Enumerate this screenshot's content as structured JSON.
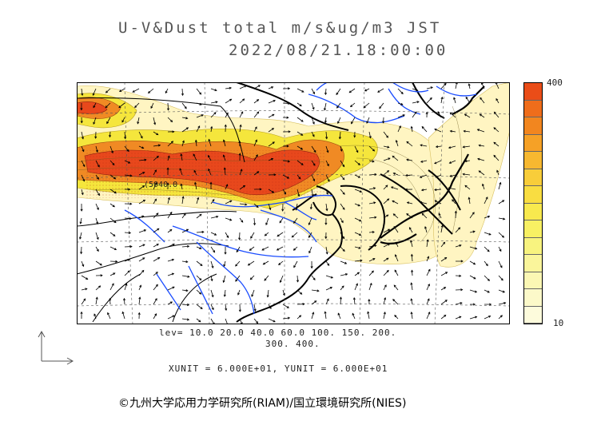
{
  "title_line1": "U-V&Dust total m/s&ug/m3 JST",
  "title_line2": "2022/08/21.18:00:00",
  "map": {
    "contour_label": "(5040.0",
    "arrow_field": "wind-vector-field",
    "colors": {
      "coast": "#000000",
      "rivers": "#1a4cff",
      "grid": "#555555",
      "low": "#fff5c2",
      "mid": "#f5e63c",
      "high": "#f08a24",
      "max": "#e8481c"
    }
  },
  "colorbar": {
    "top_label": "400",
    "bottom_label": "10",
    "colors": [
      "#ea4d18",
      "#ef6d1b",
      "#f2861f",
      "#f6a126",
      "#f7b830",
      "#f8cd3a",
      "#f9dd41",
      "#f8e94e",
      "#f8f063",
      "#f8f37f",
      "#faf59b",
      "#fbf7b4",
      "#fcf9c9",
      "#fdfbdc"
    ]
  },
  "levels_line1": "lev= 10.0 20.0 40.0 60.0 100. 150. 200.",
  "levels_line2": "300. 400.",
  "units_line": "XUNIT = 6.000E+01, YUNIT = 6.000E+01",
  "credit": "©九州大学応用力学研究所(RIAM)/国立環境研究所(NIES)"
}
